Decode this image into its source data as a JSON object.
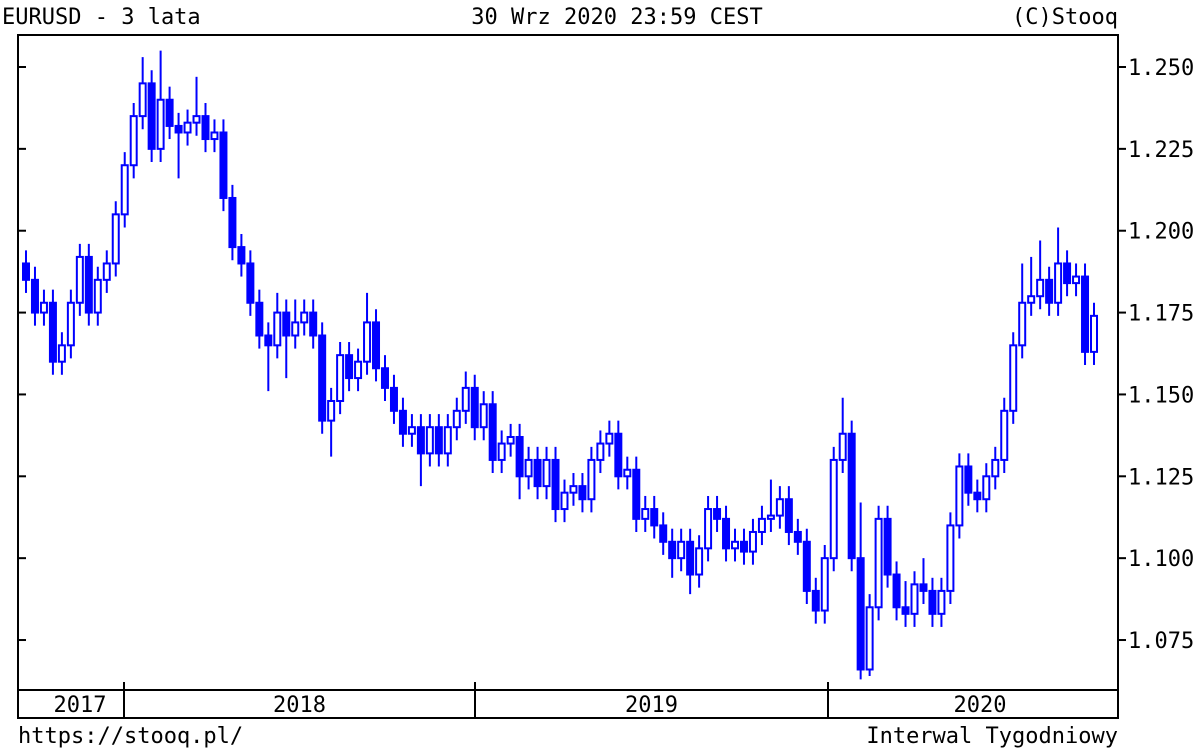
{
  "header": {
    "title": "EURUSD - 3 lata",
    "datetime": "30 Wrz 2020 23:59 CEST",
    "copyright": "(C)Stooq"
  },
  "footer": {
    "url": "https://stooq.pl/",
    "interval": "Interwal Tygodniowy"
  },
  "colors": {
    "candle": "#0000ff",
    "axis": "#000000",
    "background": "#ffffff"
  },
  "chart_data": {
    "type": "candlestick",
    "title": "EURUSD - 3 lata",
    "ylim": [
      1.06,
      1.26
    ],
    "y_ticks": [
      "1.075",
      "1.100",
      "1.125",
      "1.150",
      "1.175",
      "1.200",
      "1.225",
      "1.250"
    ],
    "x_labels": [
      "2017",
      "2018",
      "2019",
      "2020"
    ],
    "grid": false,
    "legend": "none",
    "interval": "weekly",
    "candles_ohlc": [
      [
        1.19,
        1.194,
        1.181,
        1.185
      ],
      [
        1.185,
        1.189,
        1.171,
        1.175
      ],
      [
        1.175,
        1.182,
        1.171,
        1.178
      ],
      [
        1.178,
        1.182,
        1.156,
        1.16
      ],
      [
        1.16,
        1.169,
        1.156,
        1.165
      ],
      [
        1.165,
        1.182,
        1.161,
        1.178
      ],
      [
        1.178,
        1.196,
        1.174,
        1.192
      ],
      [
        1.192,
        1.196,
        1.171,
        1.175
      ],
      [
        1.175,
        1.189,
        1.171,
        1.185
      ],
      [
        1.185,
        1.194,
        1.181,
        1.19
      ],
      [
        1.19,
        1.209,
        1.186,
        1.205
      ],
      [
        1.205,
        1.224,
        1.201,
        1.22
      ],
      [
        1.22,
        1.239,
        1.216,
        1.235
      ],
      [
        1.235,
        1.253,
        1.231,
        1.245
      ],
      [
        1.245,
        1.249,
        1.221,
        1.225
      ],
      [
        1.225,
        1.255,
        1.221,
        1.24
      ],
      [
        1.24,
        1.244,
        1.228,
        1.232
      ],
      [
        1.232,
        1.236,
        1.216,
        1.23
      ],
      [
        1.23,
        1.237,
        1.226,
        1.233
      ],
      [
        1.233,
        1.247,
        1.229,
        1.235
      ],
      [
        1.235,
        1.239,
        1.224,
        1.228
      ],
      [
        1.228,
        1.234,
        1.224,
        1.23
      ],
      [
        1.23,
        1.234,
        1.206,
        1.21
      ],
      [
        1.21,
        1.214,
        1.191,
        1.195
      ],
      [
        1.195,
        1.199,
        1.186,
        1.19
      ],
      [
        1.19,
        1.194,
        1.174,
        1.178
      ],
      [
        1.178,
        1.182,
        1.164,
        1.168
      ],
      [
        1.168,
        1.172,
        1.151,
        1.165
      ],
      [
        1.165,
        1.181,
        1.161,
        1.175
      ],
      [
        1.175,
        1.179,
        1.155,
        1.168
      ],
      [
        1.168,
        1.179,
        1.164,
        1.172
      ],
      [
        1.172,
        1.179,
        1.168,
        1.175
      ],
      [
        1.175,
        1.179,
        1.164,
        1.168
      ],
      [
        1.168,
        1.172,
        1.138,
        1.142
      ],
      [
        1.142,
        1.152,
        1.131,
        1.148
      ],
      [
        1.148,
        1.166,
        1.144,
        1.162
      ],
      [
        1.162,
        1.166,
        1.151,
        1.155
      ],
      [
        1.155,
        1.164,
        1.151,
        1.16
      ],
      [
        1.16,
        1.181,
        1.156,
        1.172
      ],
      [
        1.172,
        1.176,
        1.154,
        1.158
      ],
      [
        1.158,
        1.162,
        1.148,
        1.152
      ],
      [
        1.152,
        1.156,
        1.141,
        1.145
      ],
      [
        1.145,
        1.149,
        1.134,
        1.138
      ],
      [
        1.138,
        1.144,
        1.134,
        1.14
      ],
      [
        1.14,
        1.144,
        1.122,
        1.132
      ],
      [
        1.132,
        1.144,
        1.128,
        1.14
      ],
      [
        1.14,
        1.144,
        1.128,
        1.132
      ],
      [
        1.132,
        1.144,
        1.128,
        1.14
      ],
      [
        1.14,
        1.149,
        1.136,
        1.145
      ],
      [
        1.145,
        1.157,
        1.141,
        1.152
      ],
      [
        1.152,
        1.156,
        1.136,
        1.14
      ],
      [
        1.14,
        1.151,
        1.136,
        1.147
      ],
      [
        1.147,
        1.151,
        1.126,
        1.13
      ],
      [
        1.13,
        1.139,
        1.126,
        1.135
      ],
      [
        1.135,
        1.141,
        1.131,
        1.137
      ],
      [
        1.137,
        1.141,
        1.118,
        1.125
      ],
      [
        1.125,
        1.134,
        1.121,
        1.13
      ],
      [
        1.13,
        1.134,
        1.118,
        1.122
      ],
      [
        1.122,
        1.134,
        1.118,
        1.13
      ],
      [
        1.13,
        1.134,
        1.111,
        1.115
      ],
      [
        1.115,
        1.124,
        1.111,
        1.12
      ],
      [
        1.12,
        1.126,
        1.116,
        1.122
      ],
      [
        1.122,
        1.126,
        1.114,
        1.118
      ],
      [
        1.118,
        1.134,
        1.114,
        1.13
      ],
      [
        1.13,
        1.139,
        1.126,
        1.135
      ],
      [
        1.135,
        1.142,
        1.131,
        1.138
      ],
      [
        1.138,
        1.142,
        1.121,
        1.125
      ],
      [
        1.125,
        1.131,
        1.121,
        1.127
      ],
      [
        1.127,
        1.131,
        1.108,
        1.112
      ],
      [
        1.112,
        1.119,
        1.108,
        1.115
      ],
      [
        1.115,
        1.119,
        1.106,
        1.11
      ],
      [
        1.11,
        1.114,
        1.101,
        1.105
      ],
      [
        1.105,
        1.109,
        1.094,
        1.1
      ],
      [
        1.1,
        1.109,
        1.096,
        1.105
      ],
      [
        1.105,
        1.109,
        1.089,
        1.095
      ],
      [
        1.095,
        1.107,
        1.091,
        1.103
      ],
      [
        1.103,
        1.119,
        1.099,
        1.115
      ],
      [
        1.115,
        1.119,
        1.108,
        1.112
      ],
      [
        1.112,
        1.116,
        1.099,
        1.103
      ],
      [
        1.103,
        1.109,
        1.099,
        1.105
      ],
      [
        1.105,
        1.109,
        1.098,
        1.102
      ],
      [
        1.102,
        1.112,
        1.098,
        1.108
      ],
      [
        1.108,
        1.116,
        1.104,
        1.112
      ],
      [
        1.112,
        1.124,
        1.108,
        1.113
      ],
      [
        1.113,
        1.122,
        1.109,
        1.118
      ],
      [
        1.118,
        1.122,
        1.104,
        1.108
      ],
      [
        1.108,
        1.112,
        1.101,
        1.105
      ],
      [
        1.105,
        1.109,
        1.086,
        1.09
      ],
      [
        1.09,
        1.094,
        1.08,
        1.084
      ],
      [
        1.084,
        1.104,
        1.08,
        1.1
      ],
      [
        1.1,
        1.134,
        1.096,
        1.13
      ],
      [
        1.13,
        1.149,
        1.126,
        1.138
      ],
      [
        1.138,
        1.142,
        1.096,
        1.1
      ],
      [
        1.1,
        1.117,
        1.063,
        1.066
      ],
      [
        1.066,
        1.089,
        1.064,
        1.085
      ],
      [
        1.085,
        1.116,
        1.081,
        1.112
      ],
      [
        1.112,
        1.116,
        1.091,
        1.095
      ],
      [
        1.095,
        1.099,
        1.081,
        1.085
      ],
      [
        1.085,
        1.093,
        1.079,
        1.083
      ],
      [
        1.083,
        1.096,
        1.079,
        1.092
      ],
      [
        1.092,
        1.1,
        1.086,
        1.09
      ],
      [
        1.09,
        1.094,
        1.079,
        1.083
      ],
      [
        1.083,
        1.094,
        1.079,
        1.09
      ],
      [
        1.09,
        1.114,
        1.086,
        1.11
      ],
      [
        1.11,
        1.132,
        1.106,
        1.128
      ],
      [
        1.128,
        1.132,
        1.116,
        1.12
      ],
      [
        1.12,
        1.124,
        1.114,
        1.118
      ],
      [
        1.118,
        1.129,
        1.114,
        1.125
      ],
      [
        1.125,
        1.134,
        1.121,
        1.13
      ],
      [
        1.13,
        1.149,
        1.126,
        1.145
      ],
      [
        1.145,
        1.169,
        1.141,
        1.165
      ],
      [
        1.165,
        1.19,
        1.161,
        1.178
      ],
      [
        1.178,
        1.192,
        1.174,
        1.18
      ],
      [
        1.18,
        1.197,
        1.176,
        1.185
      ],
      [
        1.185,
        1.189,
        1.174,
        1.178
      ],
      [
        1.178,
        1.201,
        1.174,
        1.19
      ],
      [
        1.19,
        1.194,
        1.18,
        1.184
      ],
      [
        1.184,
        1.19,
        1.18,
        1.186
      ],
      [
        1.186,
        1.19,
        1.159,
        1.163
      ],
      [
        1.163,
        1.178,
        1.159,
        1.174
      ]
    ]
  }
}
